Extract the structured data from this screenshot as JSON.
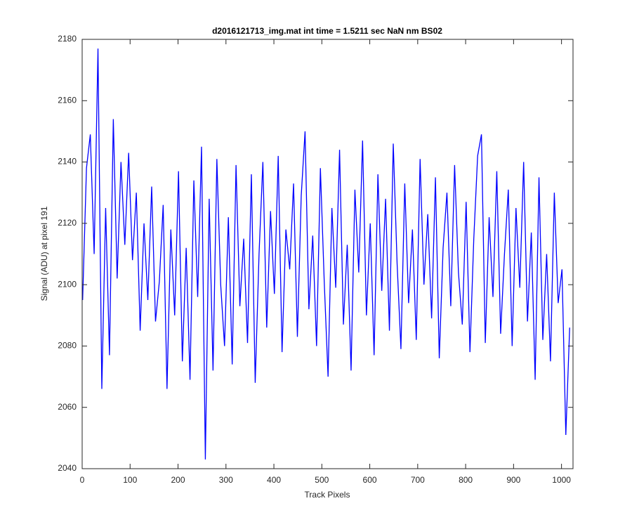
{
  "chart_data": {
    "type": "line",
    "title": "d2016121713_img.mat int time = 1.5211 sec  NaN nm BS02",
    "x_label": "Track Pixels",
    "y_label": "Signal (ADU) at pixel 191",
    "xlim": [
      0,
      1024
    ],
    "ylim": [
      2040,
      2180
    ],
    "xticks": [
      0,
      100,
      200,
      300,
      400,
      500,
      600,
      700,
      800,
      900,
      1000
    ],
    "yticks": [
      2040,
      2060,
      2080,
      2100,
      2120,
      2140,
      2160,
      2180
    ],
    "x": [
      1,
      9,
      17,
      25,
      33,
      41,
      49,
      57,
      65,
      73,
      81,
      89,
      97,
      105,
      113,
      121,
      129,
      137,
      145,
      153,
      161,
      169,
      177,
      185,
      193,
      201,
      209,
      217,
      225,
      233,
      241,
      249,
      257,
      265,
      273,
      281,
      289,
      297,
      305,
      313,
      321,
      329,
      337,
      345,
      353,
      361,
      369,
      377,
      385,
      393,
      401,
      409,
      417,
      425,
      433,
      441,
      449,
      457,
      465,
      473,
      481,
      489,
      497,
      505,
      513,
      521,
      529,
      537,
      545,
      553,
      561,
      569,
      577,
      585,
      593,
      601,
      609,
      617,
      625,
      633,
      641,
      649,
      657,
      665,
      673,
      681,
      689,
      697,
      705,
      713,
      721,
      729,
      737,
      745,
      753,
      761,
      769,
      777,
      785,
      793,
      801,
      809,
      817,
      825,
      833,
      841,
      849,
      857,
      865,
      873,
      881,
      889,
      897,
      905,
      913,
      921,
      929,
      937,
      945,
      953,
      961,
      969,
      977,
      985,
      993,
      1001,
      1009,
      1017
    ],
    "series": [
      {
        "color": "#0000ff",
        "values": [
          2095,
          2138,
          2149,
          2110,
          2177,
          2066,
          2125,
          2077,
          2154,
          2102,
          2140,
          2113,
          2143,
          2108,
          2130,
          2085,
          2120,
          2095,
          2132,
          2088,
          2101,
          2126,
          2066,
          2118,
          2090,
          2137,
          2075,
          2112,
          2069,
          2134,
          2096,
          2145,
          2043,
          2128,
          2072,
          2141,
          2100,
          2080,
          2122,
          2074,
          2139,
          2093,
          2115,
          2081,
          2136,
          2068,
          2110,
          2140,
          2086,
          2124,
          2097,
          2142,
          2078,
          2118,
          2105,
          2133,
          2083,
          2129,
          2150,
          2092,
          2116,
          2080,
          2138,
          2101,
          2070,
          2125,
          2099,
          2144,
          2087,
          2113,
          2072,
          2131,
          2104,
          2147,
          2090,
          2120,
          2077,
          2136,
          2098,
          2128,
          2085,
          2146,
          2107,
          2079,
          2133,
          2094,
          2118,
          2082,
          2141,
          2100,
          2123,
          2089,
          2135,
          2076,
          2112,
          2130,
          2093,
          2139,
          2104,
          2087,
          2127,
          2078,
          2115,
          2142,
          2149,
          2081,
          2122,
          2096,
          2137,
          2084,
          2110,
          2131,
          2080,
          2125,
          2099,
          2140,
          2088,
          2117,
          2069,
          2135,
          2082,
          2110,
          2075,
          2130,
          2094,
          2105,
          2051,
          2086
        ]
      }
    ]
  }
}
